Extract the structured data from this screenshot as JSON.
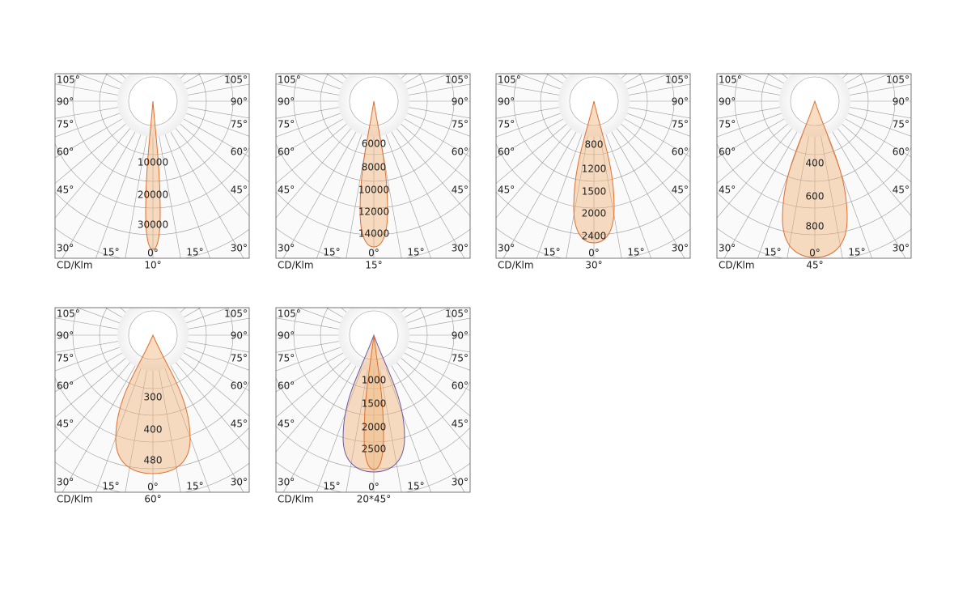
{
  "panels": [
    {
      "unit": "CD/Klm",
      "beam": "10°",
      "angles": [
        "105°",
        "90°",
        "75°",
        "60°",
        "45°",
        "30°",
        "15°",
        "0°"
      ],
      "rings": [
        "10000",
        "20000",
        "30000"
      ]
    },
    {
      "unit": "CD/Klm",
      "beam": "15°",
      "angles": [
        "105°",
        "90°",
        "75°",
        "60°",
        "45°",
        "30°",
        "15°",
        "0°"
      ],
      "rings": [
        "6000",
        "8000",
        "10000",
        "12000",
        "14000"
      ]
    },
    {
      "unit": "CD/Klm",
      "beam": "30°",
      "angles": [
        "105°",
        "90°",
        "75°",
        "60°",
        "45°",
        "30°",
        "15°",
        "0°"
      ],
      "rings": [
        "800",
        "1200",
        "1500",
        "2000",
        "2400"
      ]
    },
    {
      "unit": "CD/Klm",
      "beam": "45°",
      "angles": [
        "105°",
        "90°",
        "75°",
        "60°",
        "45°",
        "30°",
        "15°",
        "0°"
      ],
      "rings": [
        "400",
        "600",
        "800"
      ]
    },
    {
      "unit": "CD/Klm",
      "beam": "60°",
      "angles": [
        "105°",
        "90°",
        "75°",
        "60°",
        "45°",
        "30°",
        "15°",
        "0°"
      ],
      "rings": [
        "300",
        "400",
        "480"
      ]
    },
    {
      "unit": "CD/Klm",
      "beam": "20*45°",
      "angles": [
        "105°",
        "90°",
        "75°",
        "60°",
        "45°",
        "30°",
        "15°",
        "0°"
      ],
      "rings": [
        "1000",
        "1500",
        "2000",
        "2500"
      ]
    }
  ]
}
